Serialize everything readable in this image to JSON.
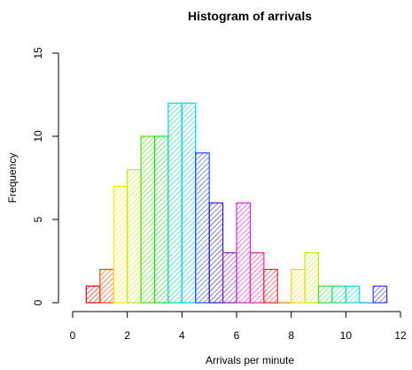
{
  "chart_data": {
    "type": "bar",
    "title": "Histogram of arrivals",
    "xlabel": "Arrivals per minute",
    "ylabel": "Frequency",
    "xlim": [
      0,
      12
    ],
    "ylim": [
      0,
      15
    ],
    "bin_width": 0.5,
    "x_ticks": [
      0,
      2,
      4,
      6,
      8,
      10,
      12
    ],
    "y_ticks": [
      0,
      5,
      10,
      15
    ],
    "grid": false,
    "fill": "diagonal hatching, rainbow colors",
    "bins": [
      {
        "start": 0.5,
        "end": 1.0,
        "count": 1,
        "color": "#ff0000"
      },
      {
        "start": 1.0,
        "end": 1.5,
        "count": 2,
        "color": "#ff4500"
      },
      {
        "start": 1.5,
        "end": 2.0,
        "count": 7,
        "color": "#ffea00"
      },
      {
        "start": 2.0,
        "end": 2.5,
        "count": 8,
        "color": "#c2f000"
      },
      {
        "start": 2.5,
        "end": 3.0,
        "count": 10,
        "color": "#55e000"
      },
      {
        "start": 3.0,
        "end": 3.5,
        "count": 10,
        "color": "#19e029"
      },
      {
        "start": 3.5,
        "end": 4.0,
        "count": 12,
        "color": "#00e0b0"
      },
      {
        "start": 4.0,
        "end": 4.5,
        "count": 12,
        "color": "#00d5e5"
      },
      {
        "start": 4.5,
        "end": 5.0,
        "count": 9,
        "color": "#1f4cff"
      },
      {
        "start": 5.0,
        "end": 5.5,
        "count": 6,
        "color": "#2a1fc8"
      },
      {
        "start": 5.5,
        "end": 6.0,
        "count": 3,
        "color": "#8a1fd0"
      },
      {
        "start": 6.0,
        "end": 6.5,
        "count": 6,
        "color": "#e31fe0"
      },
      {
        "start": 6.5,
        "end": 7.0,
        "count": 3,
        "color": "#ff1f9a"
      },
      {
        "start": 7.0,
        "end": 7.5,
        "count": 2,
        "color": "#ff1f2f"
      },
      {
        "start": 7.5,
        "end": 8.0,
        "count": 0,
        "color": "#ff7a00"
      },
      {
        "start": 8.0,
        "end": 8.5,
        "count": 2,
        "color": "#ffd500"
      },
      {
        "start": 8.5,
        "end": 9.0,
        "count": 3,
        "color": "#c6ec00"
      },
      {
        "start": 9.0,
        "end": 9.5,
        "count": 1,
        "color": "#40e03a"
      },
      {
        "start": 9.5,
        "end": 10.0,
        "count": 1,
        "color": "#1fe080"
      },
      {
        "start": 10.0,
        "end": 10.5,
        "count": 1,
        "color": "#00e6d2"
      },
      {
        "start": 10.5,
        "end": 11.0,
        "count": 0,
        "color": "#00aaff"
      },
      {
        "start": 11.0,
        "end": 11.5,
        "count": 1,
        "color": "#2f3cff"
      }
    ]
  }
}
